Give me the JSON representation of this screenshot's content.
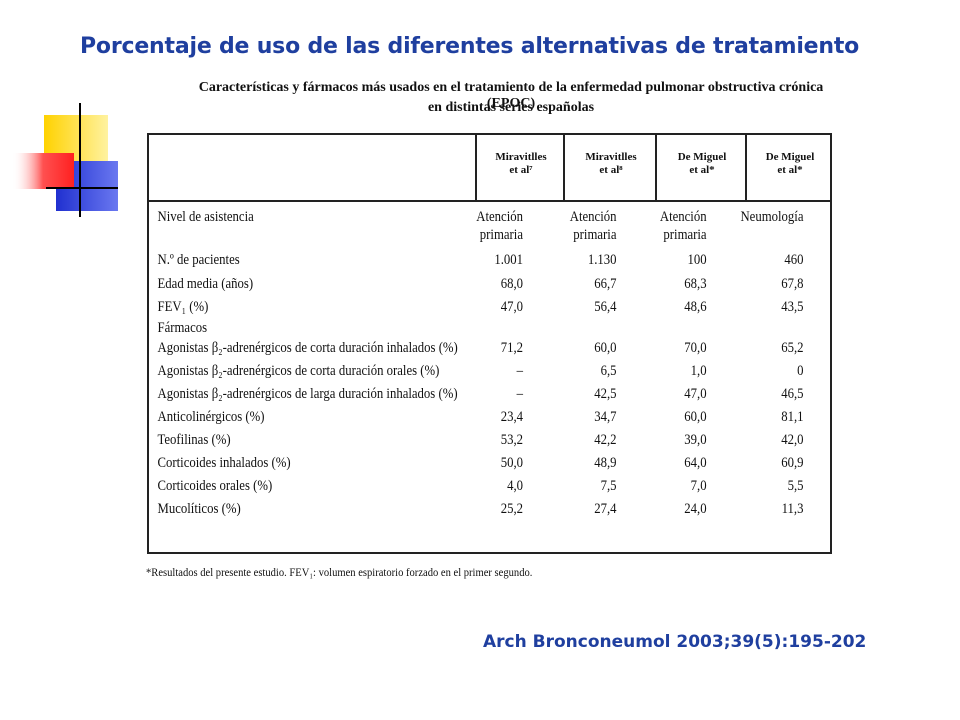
{
  "slide_title": "Porcentaje de uso de las diferentes alternativas de tratamiento",
  "table": {
    "caption_line1": "Características y fármacos más usados en el tratamiento de la enfermedad pulmonar obstructiva crónica (EPOC)",
    "caption_line2": "en distintas series españolas",
    "columns": [
      {
        "line1": "Miravitlles",
        "line2": "et al⁷"
      },
      {
        "line1": "Miravitlles",
        "line2": "et al⁸"
      },
      {
        "line1": "De Miguel",
        "line2": "et al*"
      },
      {
        "line1": "De Miguel",
        "line2": "et al*"
      }
    ],
    "rows": [
      {
        "label": "Nivel de asistencia",
        "values": [
          "Atención",
          "Atención",
          "Atención",
          "Neumología"
        ]
      },
      {
        "label": "",
        "values": [
          "primaria",
          "primaria",
          "primaria",
          ""
        ]
      },
      {
        "label": "N.º de pacientes",
        "values": [
          "1.001",
          "1.130",
          "100",
          "460"
        ]
      },
      {
        "label": "Edad media (años)",
        "values": [
          "68,0",
          "66,7",
          "68,3",
          "67,8"
        ]
      },
      {
        "label": "FEV₁ (%)",
        "values": [
          "47,0",
          "56,4",
          "48,6",
          "43,5"
        ]
      },
      {
        "label": "Fármacos",
        "values": [
          "",
          "",
          "",
          ""
        ]
      },
      {
        "label": "Agonistas β₂-adrenérgicos de corta duración inhalados (%)",
        "values": [
          "71,2",
          "60,0",
          "70,0",
          "65,2"
        ]
      },
      {
        "label": "Agonistas β₂-adrenérgicos de corta duración orales (%)",
        "values": [
          "–",
          "6,5",
          "1,0",
          "0"
        ]
      },
      {
        "label": "Agonistas β₂-adrenérgicos de larga duración inhalados (%)",
        "values": [
          "–",
          "42,5",
          "47,0",
          "46,5"
        ]
      },
      {
        "label": "Anticolinérgicos (%)",
        "values": [
          "23,4",
          "34,7",
          "60,0",
          "81,1"
        ]
      },
      {
        "label": "Teofilinas (%)",
        "values": [
          "53,2",
          "42,2",
          "39,0",
          "42,0"
        ]
      },
      {
        "label": "Corticoides inhalados (%)",
        "values": [
          "50,0",
          "48,9",
          "64,0",
          "60,9"
        ]
      },
      {
        "label": "Corticoides orales (%)",
        "values": [
          "4,0",
          "7,5",
          "7,0",
          "5,5"
        ]
      },
      {
        "label": "Mucolíticos (%)",
        "values": [
          "25,2",
          "27,4",
          "24,0",
          "11,3"
        ]
      }
    ],
    "footnote": "*Resultados del presente estudio. FEV₁: volumen espiratorio forzado en el primer segundo."
  },
  "citation": "Arch Bronconeumol  2003;39(5):195-202",
  "colors": {
    "title": "#1f3f9f",
    "deco_yellow": "#ffd200",
    "deco_blue": "#2030d0",
    "deco_red": "#ff3030"
  }
}
